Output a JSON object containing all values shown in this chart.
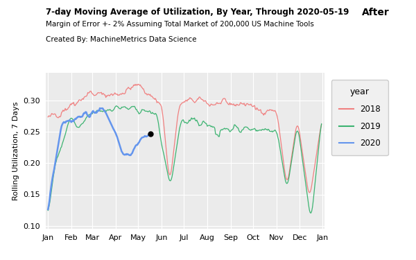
{
  "title": "7-day Moving Average of Utilization, By Year, Through 2020-05-19",
  "subtitle": "Margin of Error +- 2% Assuming Total Market of 200,000 US Machine Tools",
  "created_by": "Created By: MachineMetrics Data Science",
  "after_label": "After",
  "ylabel": "Rolling Utilization, 7 Days",
  "ylim": [
    0.095,
    0.345
  ],
  "yticks": [
    0.1,
    0.15,
    0.2,
    0.25,
    0.3
  ],
  "color_2018": "#F08080",
  "color_2019": "#3CB371",
  "color_2020": "#6495ED",
  "bg_color": "#EBEBEB",
  "grid_color": "#FFFFFF",
  "legend_bg": "#F0F0F0",
  "fig_bg": "#FFFFFF",
  "month_starts": [
    0,
    31,
    59,
    90,
    120,
    151,
    181,
    212,
    243,
    273,
    304,
    335,
    365
  ],
  "month_labels": [
    "Jan",
    "Feb",
    "Mar",
    "Apr",
    "May",
    "Jun",
    "Jul",
    "Aug",
    "Sep",
    "Oct",
    "Nov",
    "Dec",
    "Jan"
  ]
}
